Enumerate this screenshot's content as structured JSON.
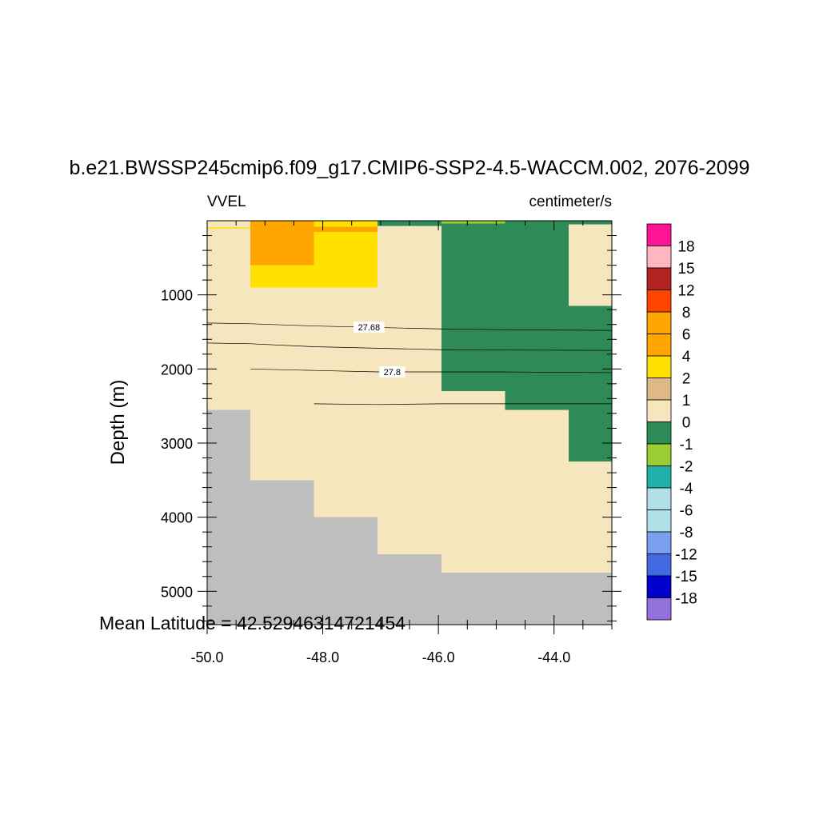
{
  "chart_data": {
    "type": "heatmap",
    "title": "b.e21.BWSSP245cmip6.f09_g17.CMIP6-SSP2-4.5-WACCM.002, 2076-2099",
    "left_string": "VVEL",
    "right_string": "centimeter/s",
    "ylabel": "Depth (m)",
    "xlabel": "",
    "xlim": [
      -50.0,
      -43.0
    ],
    "ylim": [
      5450,
      0
    ],
    "y_reversed": true,
    "x_ticks": [
      -50.0,
      -48.0,
      -46.0,
      -44.0
    ],
    "x_tick_labels": [
      "-50.0",
      "-48.0",
      "-46.0",
      "-44.0"
    ],
    "y_ticks": [
      1000,
      2000,
      3000,
      4000,
      5000
    ],
    "y_tick_labels": [
      "1000",
      "2000",
      "3000",
      "4000",
      "5000"
    ],
    "footer": "Mean Latitude = 42.52946314721454",
    "colorbar": {
      "labels": [
        "18",
        "15",
        "12",
        "8",
        "6",
        "4",
        "2",
        "1",
        "0",
        "-1",
        "-2",
        "-4",
        "-6",
        "-8",
        "-12",
        "-15",
        "-18"
      ],
      "colors": [
        "#FF1493",
        "#FFB6C1",
        "#B22222",
        "#FF4500",
        "#FFA500",
        "#FFA500",
        "#FFE000",
        "#DEB887",
        "#F5E6BE",
        "#2E8B57",
        "#9ACD32",
        "#20B2AA",
        "#B0E0E6",
        "#B0E0E6",
        "#7B9FEE",
        "#4169E1",
        "#0000CD",
        "#9370DB"
      ]
    },
    "cells": [
      {
        "x": [
          -50.0,
          -49.25
        ],
        "depth": [
          0,
          90
        ],
        "value": 0.5
      },
      {
        "x": [
          -50.0,
          -49.25
        ],
        "depth": [
          90,
          110
        ],
        "value": 3
      },
      {
        "x": [
          -50.0,
          -49.25
        ],
        "depth": [
          110,
          400
        ],
        "value": 0.5
      },
      {
        "x": [
          -50.0,
          -49.25
        ],
        "depth": [
          400,
          2550
        ],
        "value": 0.2
      },
      {
        "x": [
          -50.0,
          -49.25
        ],
        "depth": [
          2550,
          5450
        ],
        "value": null
      },
      {
        "x": [
          -49.25,
          -48.15
        ],
        "depth": [
          0,
          600
        ],
        "value": 5
      },
      {
        "x": [
          -49.25,
          -48.15
        ],
        "depth": [
          600,
          900
        ],
        "value": 3
      },
      {
        "x": [
          -49.25,
          -48.15
        ],
        "depth": [
          900,
          1300
        ],
        "value": 0.5
      },
      {
        "x": [
          -49.25,
          -48.15
        ],
        "depth": [
          1300,
          3500
        ],
        "value": 0.2
      },
      {
        "x": [
          -49.25,
          -48.15
        ],
        "depth": [
          3500,
          5450
        ],
        "value": null
      },
      {
        "x": [
          -48.15,
          -47.05
        ],
        "depth": [
          0,
          80
        ],
        "value": 3
      },
      {
        "x": [
          -48.15,
          -47.05
        ],
        "depth": [
          80,
          150
        ],
        "value": 5
      },
      {
        "x": [
          -48.15,
          -47.05
        ],
        "depth": [
          150,
          900
        ],
        "value": 3
      },
      {
        "x": [
          -48.15,
          -47.05
        ],
        "depth": [
          900,
          1850
        ],
        "value": 0.5
      },
      {
        "x": [
          -48.15,
          -47.05
        ],
        "depth": [
          1850,
          4000
        ],
        "value": 0.2
      },
      {
        "x": [
          -48.15,
          -47.05
        ],
        "depth": [
          4000,
          5450
        ],
        "value": null
      },
      {
        "x": [
          -47.05,
          -45.95
        ],
        "depth": [
          0,
          70
        ],
        "value": -0.5
      },
      {
        "x": [
          -47.05,
          -45.95
        ],
        "depth": [
          70,
          4500
        ],
        "value": 0.2
      },
      {
        "x": [
          -47.05,
          -45.95
        ],
        "depth": [
          4500,
          5450
        ],
        "value": null
      },
      {
        "x": [
          -45.95,
          -44.85
        ],
        "depth": [
          0,
          40
        ],
        "value": -1.5
      },
      {
        "x": [
          -45.95,
          -44.85
        ],
        "depth": [
          40,
          2300
        ],
        "value": -0.5
      },
      {
        "x": [
          -45.95,
          -44.85
        ],
        "depth": [
          2300,
          4750
        ],
        "value": 0.2
      },
      {
        "x": [
          -45.95,
          -44.85
        ],
        "depth": [
          4750,
          5450
        ],
        "value": null
      },
      {
        "x": [
          -44.85,
          -43.75
        ],
        "depth": [
          0,
          2550
        ],
        "value": -0.5
      },
      {
        "x": [
          -44.85,
          -43.75
        ],
        "depth": [
          2550,
          4750
        ],
        "value": 0.2
      },
      {
        "x": [
          -44.85,
          -43.75
        ],
        "depth": [
          4750,
          5450
        ],
        "value": null
      },
      {
        "x": [
          -43.75,
          -43.0
        ],
        "depth": [
          0,
          50
        ],
        "value": -0.5
      },
      {
        "x": [
          -43.75,
          -43.0
        ],
        "depth": [
          50,
          1150
        ],
        "value": 0.2
      },
      {
        "x": [
          -43.75,
          -43.0
        ],
        "depth": [
          1150,
          3250
        ],
        "value": -0.5
      },
      {
        "x": [
          -43.75,
          -43.0
        ],
        "depth": [
          3250,
          4750
        ],
        "value": 0.2
      },
      {
        "x": [
          -43.75,
          -43.0
        ],
        "depth": [
          4750,
          5450
        ],
        "value": null
      }
    ],
    "contours": [
      {
        "label": "27.68",
        "label_x": -47.2,
        "points": [
          [
            -50.0,
            1380
          ],
          [
            -49.25,
            1390
          ],
          [
            -48.15,
            1420
          ],
          [
            -47.05,
            1440
          ],
          [
            -45.95,
            1460
          ],
          [
            -44.85,
            1470
          ],
          [
            -43.0,
            1480
          ]
        ]
      },
      {
        "label": "",
        "label_x": null,
        "points": [
          [
            -50.0,
            1650
          ],
          [
            -49.25,
            1660
          ],
          [
            -48.15,
            1700
          ],
          [
            -47.05,
            1720
          ],
          [
            -45.95,
            1740
          ],
          [
            -44.85,
            1745
          ],
          [
            -43.0,
            1750
          ]
        ]
      },
      {
        "label": "27.8",
        "label_x": -46.8,
        "points": [
          [
            -49.25,
            2000
          ],
          [
            -48.15,
            2020
          ],
          [
            -47.05,
            2040
          ],
          [
            -45.95,
            2040
          ],
          [
            -44.85,
            2040
          ],
          [
            -43.0,
            2050
          ]
        ]
      },
      {
        "label": "",
        "label_x": null,
        "points": [
          [
            -48.15,
            2470
          ],
          [
            -47.05,
            2480
          ],
          [
            -45.95,
            2470
          ],
          [
            -44.85,
            2470
          ],
          [
            -43.0,
            2470
          ]
        ]
      }
    ]
  }
}
